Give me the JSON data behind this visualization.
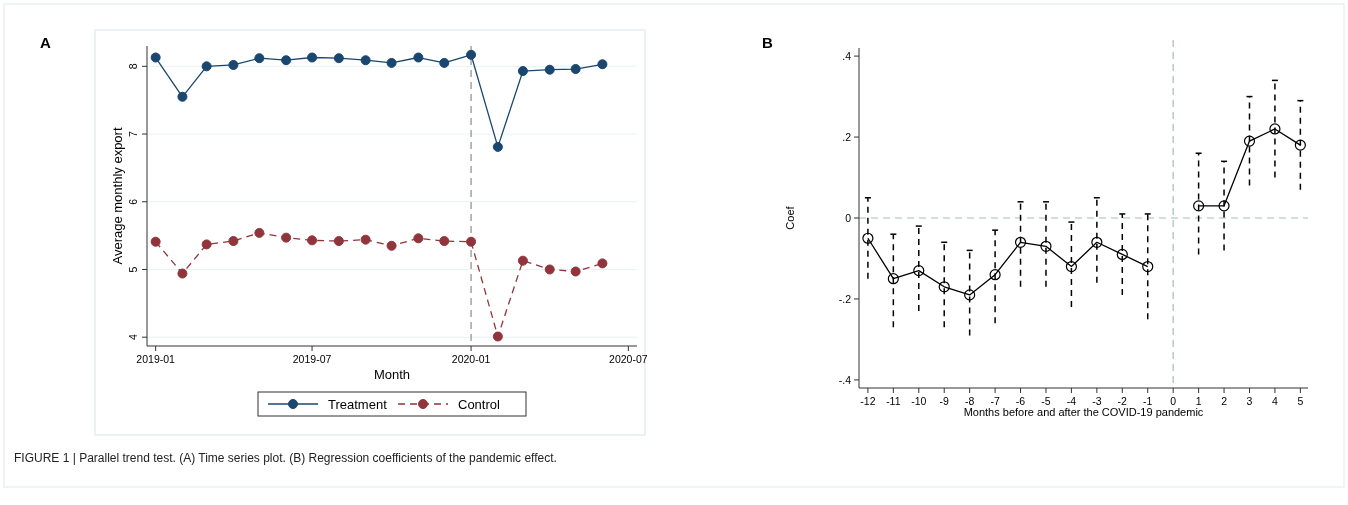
{
  "chart_data": [
    {
      "type": "line",
      "title": "A",
      "xlabel": "Month",
      "ylabel": "Average monthly export",
      "x": [
        "2019-01",
        "2019-02",
        "2019-03",
        "2019-04",
        "2019-05",
        "2019-06",
        "2019-07",
        "2019-08",
        "2019-09",
        "2019-10",
        "2019-11",
        "2019-12",
        "2020-01",
        "2020-02",
        "2020-03",
        "2020-04",
        "2020-05",
        "2020-06"
      ],
      "series": [
        {
          "name": "Treatment",
          "color": "#1a476f",
          "line_style": "solid",
          "values": [
            8.13,
            7.55,
            8.0,
            8.02,
            8.12,
            8.09,
            8.13,
            8.12,
            8.09,
            8.05,
            8.13,
            8.05,
            8.17,
            6.81,
            7.93,
            7.95,
            7.96,
            8.03
          ]
        },
        {
          "name": "Control",
          "color": "#90353b",
          "line_style": "dashed",
          "values": [
            5.41,
            4.94,
            5.37,
            5.42,
            5.54,
            5.47,
            5.43,
            5.42,
            5.44,
            5.35,
            5.46,
            5.42,
            5.41,
            4.01,
            5.13,
            5.0,
            4.97,
            5.09
          ]
        }
      ],
      "xlim": [
        "2018-12-22",
        "2020-07-11"
      ],
      "xticks": [
        "2019-01",
        "2019-07",
        "2020-01",
        "2020-07"
      ],
      "ylim": [
        3.87,
        8.3
      ],
      "yticks": [
        4,
        5,
        6,
        7,
        8
      ],
      "grid": "y",
      "legend": "bottom",
      "marker": "circle",
      "ref_lines": [
        {
          "axis": "x",
          "value": "2020-01",
          "color": "#8c8c8c",
          "line_style": "dashed"
        }
      ],
      "annotations": [
        "FIGURE 1 | Parallel trend test. (A) Time series plot. (B) Regression coefficients of the pandemic effect."
      ]
    },
    {
      "type": "line",
      "title": "B",
      "xlabel": "Months before and after the COVID-19 pandemic",
      "ylabel": "Coef",
      "x": [
        -12,
        -11,
        -10,
        -9,
        -8,
        -7,
        -6,
        -5,
        -4,
        -3,
        -2,
        -1,
        0,
        1,
        2,
        3,
        4,
        5
      ],
      "series": [
        {
          "color": "#000000",
          "line_style": "solid",
          "values": [
            -0.05,
            -0.15,
            -0.13,
            -0.17,
            -0.19,
            -0.14,
            -0.06,
            -0.07,
            -0.12,
            -0.06,
            -0.09,
            -0.12,
            null,
            0.03,
            0.03,
            0.19,
            0.22,
            0.18
          ],
          "errors": [
            [
              -0.15,
              0.05
            ],
            [
              -0.27,
              -0.04
            ],
            [
              -0.23,
              -0.02
            ],
            [
              -0.27,
              -0.06
            ],
            [
              -0.29,
              -0.08
            ],
            [
              -0.26,
              -0.03
            ],
            [
              -0.17,
              0.04
            ],
            [
              -0.17,
              0.04
            ],
            [
              -0.22,
              -0.01
            ],
            [
              -0.16,
              0.05
            ],
            [
              -0.19,
              0.01
            ],
            [
              -0.25,
              0.01
            ],
            null,
            [
              -0.09,
              0.16
            ],
            [
              -0.08,
              0.14
            ],
            [
              0.08,
              0.3
            ],
            [
              0.1,
              0.34
            ],
            [
              0.07,
              0.29
            ]
          ]
        }
      ],
      "xlim": [
        -12.35,
        5.3
      ],
      "xticks": [
        -12,
        -11,
        -10,
        -9,
        -8,
        -7,
        -6,
        -5,
        -4,
        -3,
        -2,
        -1,
        0,
        1,
        2,
        3,
        4,
        5
      ],
      "ylim": [
        -0.42,
        0.42
      ],
      "yticks": [
        {
          "value": -0.4,
          "label": "-.4"
        },
        {
          "value": -0.2,
          "label": "-.2"
        },
        0,
        {
          "value": 0.2,
          "label": ".2"
        },
        {
          "value": 0.4,
          "label": ".4"
        }
      ],
      "grid": false,
      "marker": "circle",
      "ref_lines": [
        {
          "axis": "y",
          "value": 0,
          "color": "#a3bfb5",
          "line_style": "dashed"
        },
        {
          "axis": "x",
          "value": 0,
          "color": "#a3bfb5",
          "line_style": "dashed"
        }
      ]
    }
  ]
}
